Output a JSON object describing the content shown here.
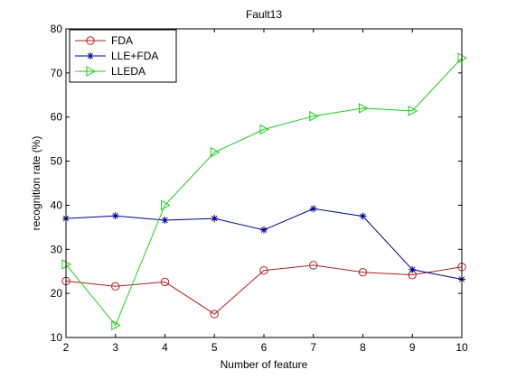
{
  "chart_data": {
    "type": "line",
    "title": "Fault13",
    "xlabel": "Number of feature",
    "ylabel": "recognition rate (%)",
    "xlim": [
      2,
      10
    ],
    "ylim": [
      10,
      80
    ],
    "x": [
      2,
      3,
      4,
      5,
      6,
      7,
      8,
      9,
      10
    ],
    "xticks": [
      "2",
      "3",
      "4",
      "5",
      "6",
      "7",
      "8",
      "9",
      "10"
    ],
    "yticks": [
      "10",
      "20",
      "30",
      "40",
      "50",
      "60",
      "70",
      "80"
    ],
    "grid": false,
    "legend_position": "top-left",
    "series": [
      {
        "name": "FDA",
        "color": "#b22222",
        "marker": "circle",
        "values": [
          22.8,
          21.6,
          22.6,
          15.3,
          25.2,
          26.4,
          24.8,
          24.2,
          26.0
        ]
      },
      {
        "name": "LLE+FDA",
        "color": "#00008b",
        "marker": "star",
        "values": [
          37.0,
          37.6,
          36.6,
          37.0,
          34.4,
          39.2,
          37.5,
          25.4,
          23.2
        ]
      },
      {
        "name": "LLEDA",
        "color": "#22cc22",
        "marker": "triangle-right",
        "values": [
          26.6,
          12.8,
          40.0,
          52.0,
          57.2,
          60.2,
          62.0,
          61.4,
          73.4
        ]
      }
    ]
  }
}
